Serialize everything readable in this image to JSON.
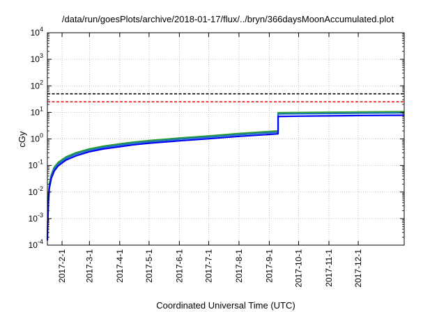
{
  "chart_data": {
    "type": "line",
    "title": "/data/run/goesPlots/archive/2018-01-17/flux/../bryn/366daysMoonAccumulated.plot",
    "xlabel": "Coordinated Universal Time (UTC)",
    "ylabel": "cGy",
    "yscale": "log",
    "ylim": [
      0.0001,
      10000
    ],
    "xlim": [
      "2017-01-17",
      "2018-01-17"
    ],
    "grid": true,
    "y_ticks": [
      {
        "value": 0.0001,
        "base": "10",
        "exp": "-4"
      },
      {
        "value": 0.001,
        "base": "10",
        "exp": "-3"
      },
      {
        "value": 0.01,
        "base": "10",
        "exp": "-2"
      },
      {
        "value": 0.1,
        "base": "10",
        "exp": "-1"
      },
      {
        "value": 1,
        "base": "10",
        "exp": "0"
      },
      {
        "value": 10,
        "base": "10",
        "exp": "1"
      },
      {
        "value": 100,
        "base": "10",
        "exp": "2"
      },
      {
        "value": 1000,
        "base": "10",
        "exp": "3"
      },
      {
        "value": 10000,
        "base": "10",
        "exp": "4"
      }
    ],
    "x_ticks": [
      {
        "date": "2017-02-01",
        "label": "2017-2-1"
      },
      {
        "date": "2017-03-01",
        "label": "2017-3-1"
      },
      {
        "date": "2017-04-01",
        "label": "2017-4-1"
      },
      {
        "date": "2017-05-01",
        "label": "2017-5-1"
      },
      {
        "date": "2017-06-01",
        "label": "2017-6-1"
      },
      {
        "date": "2017-07-01",
        "label": "2017-7-1"
      },
      {
        "date": "2017-08-01",
        "label": "2017-8-1"
      },
      {
        "date": "2017-09-01",
        "label": "2017-9-1"
      },
      {
        "date": "2017-10-01",
        "label": "2017-10-1"
      },
      {
        "date": "2017-11-01",
        "label": "2017-11-1"
      },
      {
        "date": "2017-12-01",
        "label": "2017-12-1"
      }
    ],
    "reference_lines": [
      {
        "y": 50,
        "color": "#000000",
        "style": "dashed"
      },
      {
        "y": 25,
        "color": "#e41a1c",
        "style": "dashed"
      }
    ],
    "series": [
      {
        "color": "#2ca02c",
        "x": [
          "2017-01-17",
          "2017-01-18",
          "2017-01-19",
          "2017-01-21",
          "2017-01-24",
          "2017-01-28",
          "2017-02-05",
          "2017-02-15",
          "2017-03-01",
          "2017-03-15",
          "2017-04-01",
          "2017-04-15",
          "2017-05-01",
          "2017-06-01",
          "2017-07-01",
          "2017-08-01",
          "2017-09-01",
          "2017-09-10",
          "2017-09-10",
          "2017-10-01",
          "2017-11-01",
          "2017-12-01",
          "2018-01-17"
        ],
        "y": [
          0.00025,
          0.006,
          0.02,
          0.045,
          0.085,
          0.13,
          0.21,
          0.3,
          0.42,
          0.53,
          0.65,
          0.76,
          0.87,
          1.08,
          1.3,
          1.6,
          1.9,
          2.0,
          9.7,
          9.9,
          10.1,
          10.3,
          10.6
        ]
      },
      {
        "color": "#1f77b4",
        "x": [
          "2017-01-17",
          "2017-01-18",
          "2017-01-19",
          "2017-01-21",
          "2017-01-24",
          "2017-01-28",
          "2017-02-05",
          "2017-02-15",
          "2017-03-01",
          "2017-03-15",
          "2017-04-01",
          "2017-04-15",
          "2017-05-01",
          "2017-06-01",
          "2017-07-01",
          "2017-08-01",
          "2017-09-01",
          "2017-09-10",
          "2017-09-10",
          "2017-10-01",
          "2017-11-01",
          "2017-12-01",
          "2018-01-17"
        ],
        "y": [
          0.0002,
          0.005,
          0.017,
          0.04,
          0.075,
          0.115,
          0.185,
          0.27,
          0.38,
          0.48,
          0.59,
          0.69,
          0.79,
          0.98,
          1.18,
          1.45,
          1.72,
          1.82,
          8.7,
          8.9,
          9.1,
          9.3,
          9.6
        ]
      },
      {
        "color": "#0000ff",
        "x": [
          "2017-01-17",
          "2017-01-18",
          "2017-01-19",
          "2017-01-21",
          "2017-01-24",
          "2017-01-28",
          "2017-02-05",
          "2017-02-15",
          "2017-03-01",
          "2017-03-15",
          "2017-04-01",
          "2017-04-15",
          "2017-05-01",
          "2017-06-01",
          "2017-07-01",
          "2017-08-01",
          "2017-09-01",
          "2017-09-10",
          "2017-09-10",
          "2017-10-01",
          "2017-11-01",
          "2017-12-01",
          "2018-01-17"
        ],
        "y": [
          0.00015,
          0.004,
          0.014,
          0.033,
          0.062,
          0.097,
          0.16,
          0.23,
          0.33,
          0.42,
          0.51,
          0.6,
          0.69,
          0.85,
          1.02,
          1.25,
          1.48,
          1.56,
          7.0,
          7.2,
          7.4,
          7.6,
          7.8
        ]
      }
    ]
  }
}
